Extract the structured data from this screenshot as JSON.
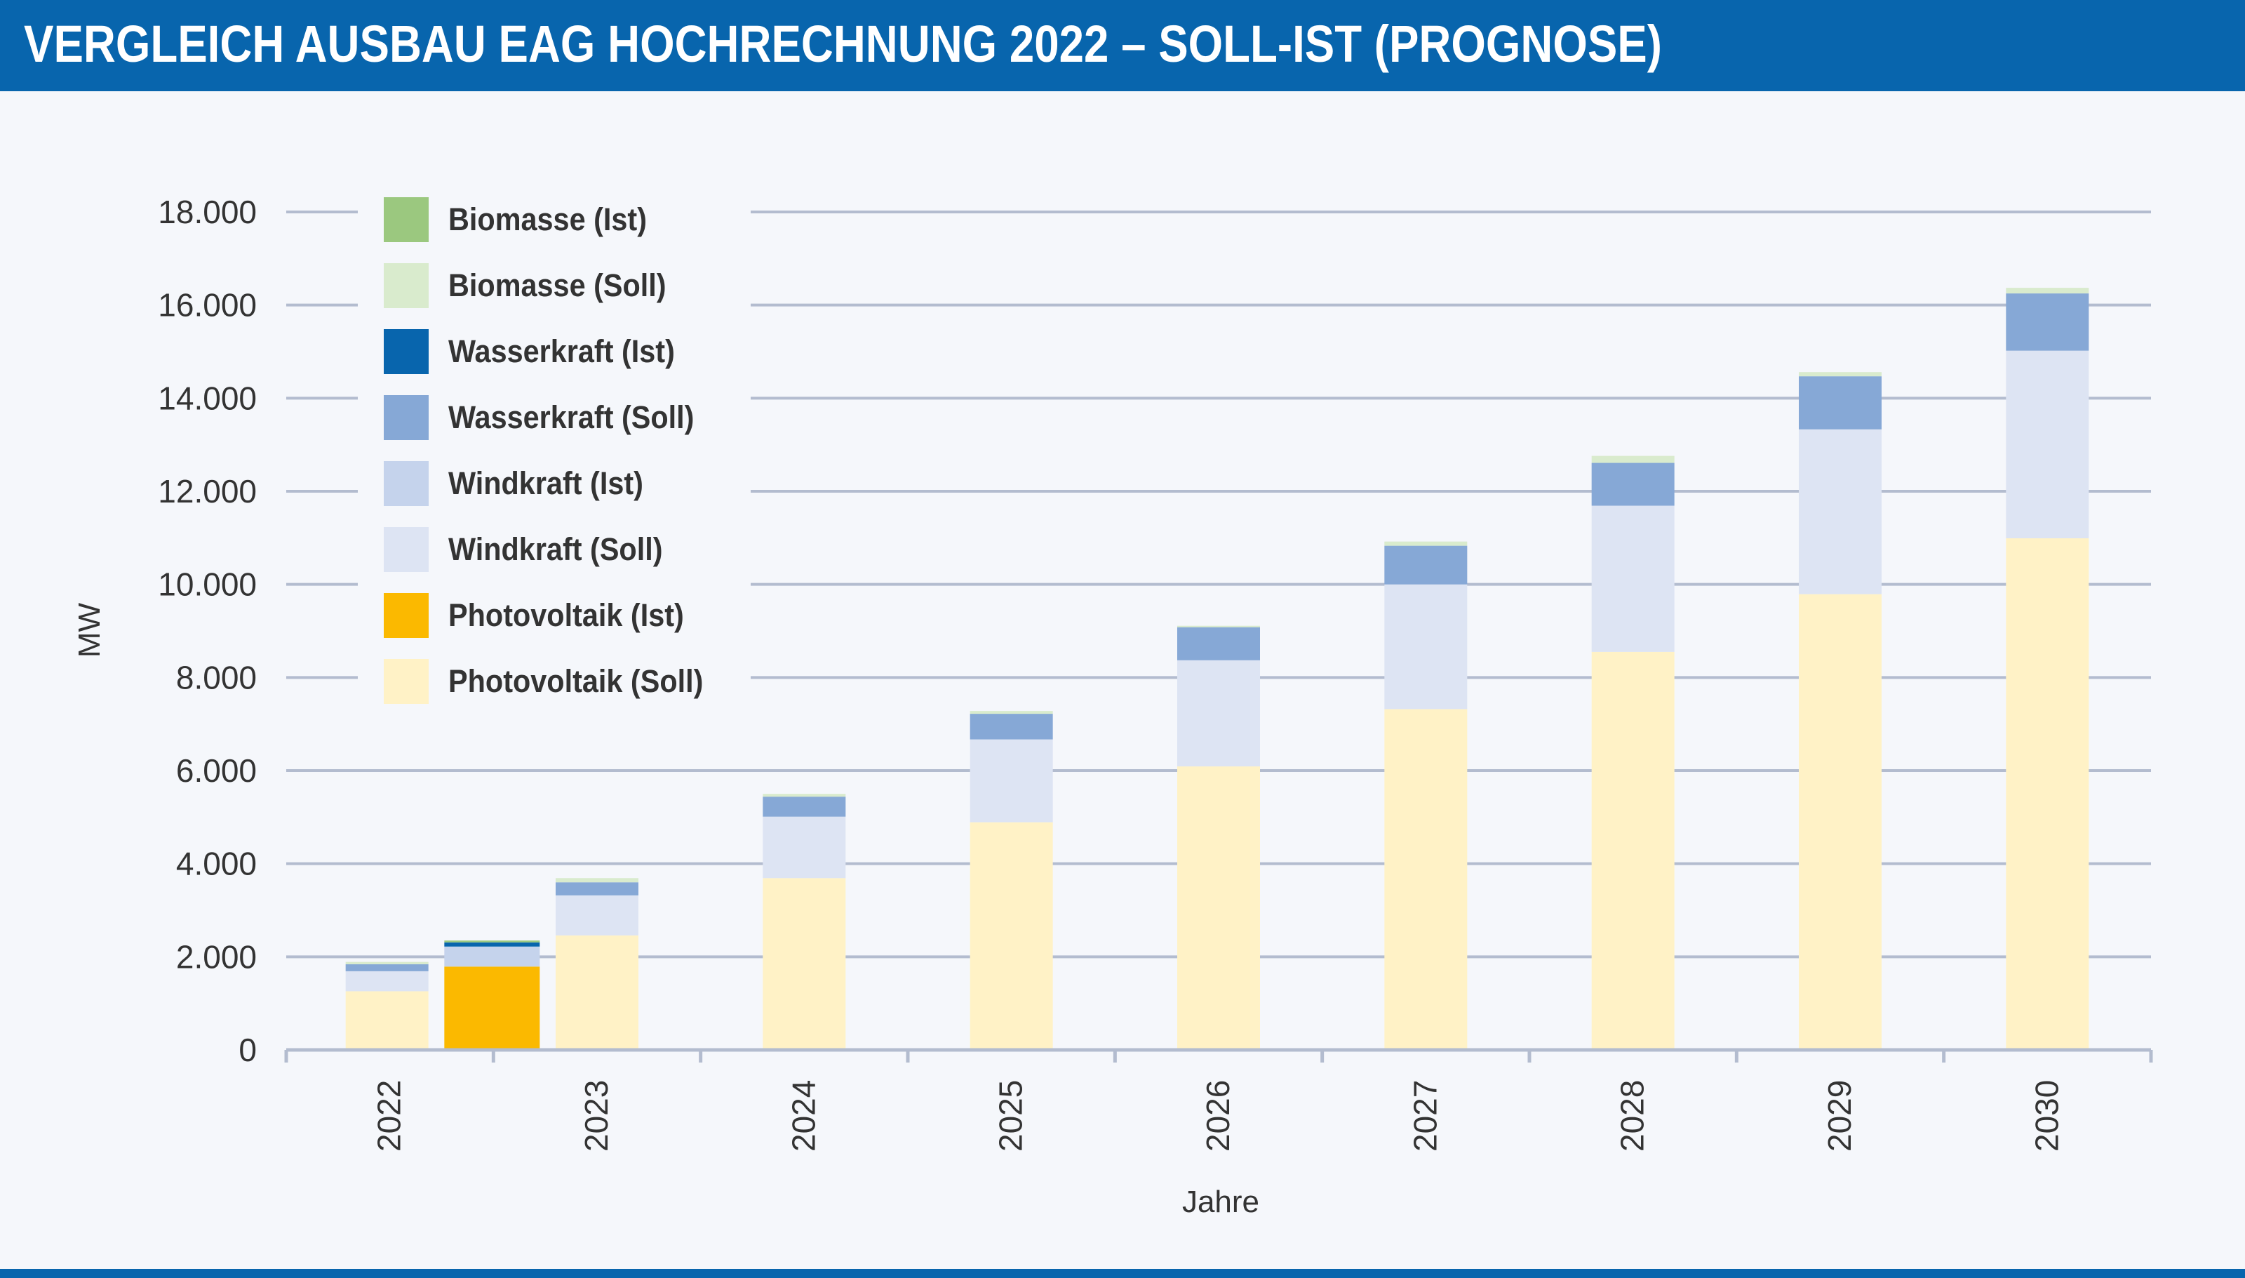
{
  "title": "VERGLEICH AUSBAU EAG HOCHRECHNUNG 2022 – SOLL-IST (PROGNOSE)",
  "chart_data": {
    "type": "bar",
    "stacked": true,
    "title": "VERGLEICH AUSBAU EAG HOCHRECHNUNG 2022 – SOLL-IST (PROGNOSE)",
    "xlabel": "Jahre",
    "ylabel": "MW",
    "ylim": [
      0,
      18000
    ],
    "yticks": [
      "0",
      "2.000",
      "4.000",
      "6.000",
      "8.000",
      "10.000",
      "12.000",
      "14.000",
      "16.000",
      "18.000"
    ],
    "ytick_values": [
      0,
      2000,
      4000,
      6000,
      8000,
      10000,
      12000,
      14000,
      16000,
      18000
    ],
    "categories": [
      "2022",
      "2023",
      "2024",
      "2025",
      "2026",
      "2027",
      "2028",
      "2029",
      "2030"
    ],
    "grid": true,
    "legend_position": "top-left",
    "legend": [
      "Biomasse (Ist)",
      "Biomasse (Soll)",
      "Wasserkraft (Ist)",
      "Wasserkraft (Soll)",
      "Windkraft (Ist)",
      "Windkraft (Soll)",
      "Photovoltaik (Ist)",
      "Photovoltaik (Soll)"
    ],
    "soll_series": [
      {
        "name": "Photovoltaik (Soll)",
        "color": "#fff2c6",
        "values": [
          1260,
          2460,
          3690,
          4890,
          6090,
          7320,
          8550,
          9790,
          10990
        ]
      },
      {
        "name": "Windkraft (Soll)",
        "color": "#dde4f3",
        "values": [
          430,
          860,
          1320,
          1780,
          2280,
          2680,
          3140,
          3540,
          4030
        ]
      },
      {
        "name": "Wasserkraft (Soll)",
        "color": "#86a8d6",
        "values": [
          150,
          280,
          430,
          550,
          710,
          830,
          920,
          1140,
          1230
        ]
      },
      {
        "name": "Biomasse (Soll)",
        "color": "#d9ebcd",
        "values": [
          50,
          90,
          60,
          60,
          30,
          90,
          150,
          90,
          120
        ]
      }
    ],
    "ist_series": [
      {
        "name": "Photovoltaik (Ist)",
        "color": "#fbb900",
        "values": [
          1790
        ]
      },
      {
        "name": "Windkraft (Ist)",
        "color": "#c5d3ec",
        "values": [
          430
        ]
      },
      {
        "name": "Wasserkraft (Ist)",
        "color": "#0865ad",
        "values": [
          90
        ]
      },
      {
        "name": "Biomasse (Ist)",
        "color": "#9bc87f",
        "values": [
          40
        ]
      }
    ],
    "ist_category": "2022"
  },
  "legend_colors": [
    "#9bc87f",
    "#d9ebcd",
    "#0865ad",
    "#86a8d6",
    "#c5d3ec",
    "#dde4f3",
    "#fbb900",
    "#fff2c6"
  ]
}
